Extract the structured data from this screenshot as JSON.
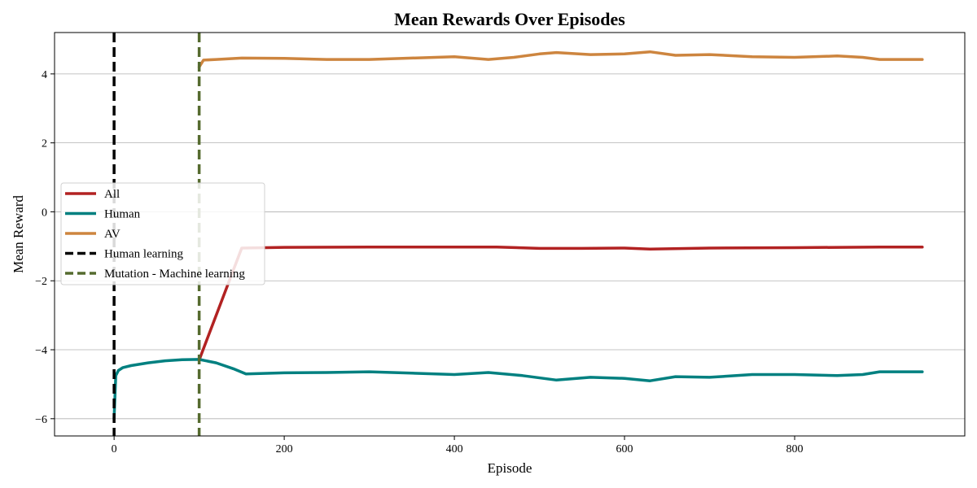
{
  "chart_data": {
    "type": "line",
    "title": "Mean Rewards Over Episodes",
    "xlabel": "Episode",
    "ylabel": "Mean Reward",
    "xlim": [
      -70,
      1000
    ],
    "ylim": [
      -6.5,
      5.2
    ],
    "xticks": [
      0,
      200,
      400,
      600,
      800
    ],
    "yticks": [
      -6,
      -4,
      -2,
      0,
      2,
      4
    ],
    "grid": "horizontal",
    "legend_position": "center-left",
    "series": [
      {
        "name": "All",
        "color": "#b22222",
        "points": [
          [
            100,
            -4.3
          ],
          [
            150,
            -1.05
          ],
          [
            200,
            -1.03
          ],
          [
            300,
            -1.02
          ],
          [
            400,
            -1.02
          ],
          [
            450,
            -1.02
          ],
          [
            500,
            -1.06
          ],
          [
            550,
            -1.06
          ],
          [
            600,
            -1.05
          ],
          [
            630,
            -1.08
          ],
          [
            700,
            -1.05
          ],
          [
            800,
            -1.04
          ],
          [
            900,
            -1.02
          ],
          [
            950,
            -1.02
          ]
        ]
      },
      {
        "name": "Human",
        "color": "#008080",
        "points": [
          [
            0,
            -6.0
          ],
          [
            2,
            -4.75
          ],
          [
            5,
            -4.6
          ],
          [
            10,
            -4.52
          ],
          [
            20,
            -4.46
          ],
          [
            40,
            -4.38
          ],
          [
            60,
            -4.32
          ],
          [
            80,
            -4.29
          ],
          [
            100,
            -4.28
          ],
          [
            120,
            -4.38
          ],
          [
            140,
            -4.55
          ],
          [
            155,
            -4.7
          ],
          [
            200,
            -4.67
          ],
          [
            250,
            -4.66
          ],
          [
            300,
            -4.64
          ],
          [
            350,
            -4.68
          ],
          [
            400,
            -4.72
          ],
          [
            440,
            -4.66
          ],
          [
            480,
            -4.75
          ],
          [
            520,
            -4.88
          ],
          [
            560,
            -4.8
          ],
          [
            600,
            -4.83
          ],
          [
            630,
            -4.9
          ],
          [
            660,
            -4.78
          ],
          [
            700,
            -4.8
          ],
          [
            750,
            -4.72
          ],
          [
            800,
            -4.72
          ],
          [
            850,
            -4.75
          ],
          [
            880,
            -4.72
          ],
          [
            900,
            -4.64
          ],
          [
            950,
            -4.64
          ]
        ]
      },
      {
        "name": "AV",
        "color": "#cd853f",
        "points": [
          [
            100,
            4.2
          ],
          [
            105,
            4.4
          ],
          [
            120,
            4.42
          ],
          [
            150,
            4.46
          ],
          [
            200,
            4.45
          ],
          [
            250,
            4.42
          ],
          [
            300,
            4.42
          ],
          [
            350,
            4.46
          ],
          [
            400,
            4.5
          ],
          [
            440,
            4.42
          ],
          [
            470,
            4.48
          ],
          [
            500,
            4.58
          ],
          [
            520,
            4.62
          ],
          [
            560,
            4.56
          ],
          [
            600,
            4.58
          ],
          [
            630,
            4.64
          ],
          [
            660,
            4.54
          ],
          [
            700,
            4.56
          ],
          [
            750,
            4.5
          ],
          [
            800,
            4.48
          ],
          [
            850,
            4.52
          ],
          [
            880,
            4.48
          ],
          [
            900,
            4.42
          ],
          [
            950,
            4.42
          ]
        ]
      }
    ],
    "vlines": [
      {
        "name": "Human learning",
        "x": 0,
        "color": "#000000"
      },
      {
        "name": "Mutation - Machine learning",
        "x": 100,
        "color": "#556b2f"
      }
    ]
  }
}
